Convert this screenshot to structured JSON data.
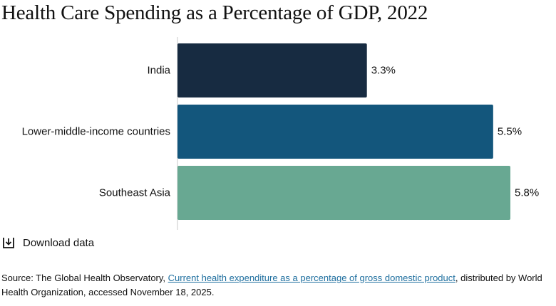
{
  "title": "Health Care Spending as a Percentage of GDP, 2022",
  "chart_data": {
    "type": "bar",
    "orientation": "horizontal",
    "title": "Health Care Spending as a Percentage of GDP, 2022",
    "categories": [
      "India",
      "Lower-middle-income countries",
      "Southeast Asia"
    ],
    "values": [
      3.3,
      5.5,
      5.8
    ],
    "value_labels": [
      "3.3%",
      "5.5%",
      "5.8%"
    ],
    "colors": [
      "#172b41",
      "#13567c",
      "#68a892"
    ],
    "xlim": [
      0,
      5.8
    ],
    "grid": false,
    "legend": "none"
  },
  "download": {
    "icon": "download-icon",
    "label": "Download data"
  },
  "source": {
    "prefix": "Source: The Global Health Observatory, ",
    "link_text": "Current health expenditure as a percentage of gross domestic product",
    "suffix": ", distributed by World Health Organization, accessed November 18, 2025.",
    "link_color": "#1f6f9f"
  }
}
